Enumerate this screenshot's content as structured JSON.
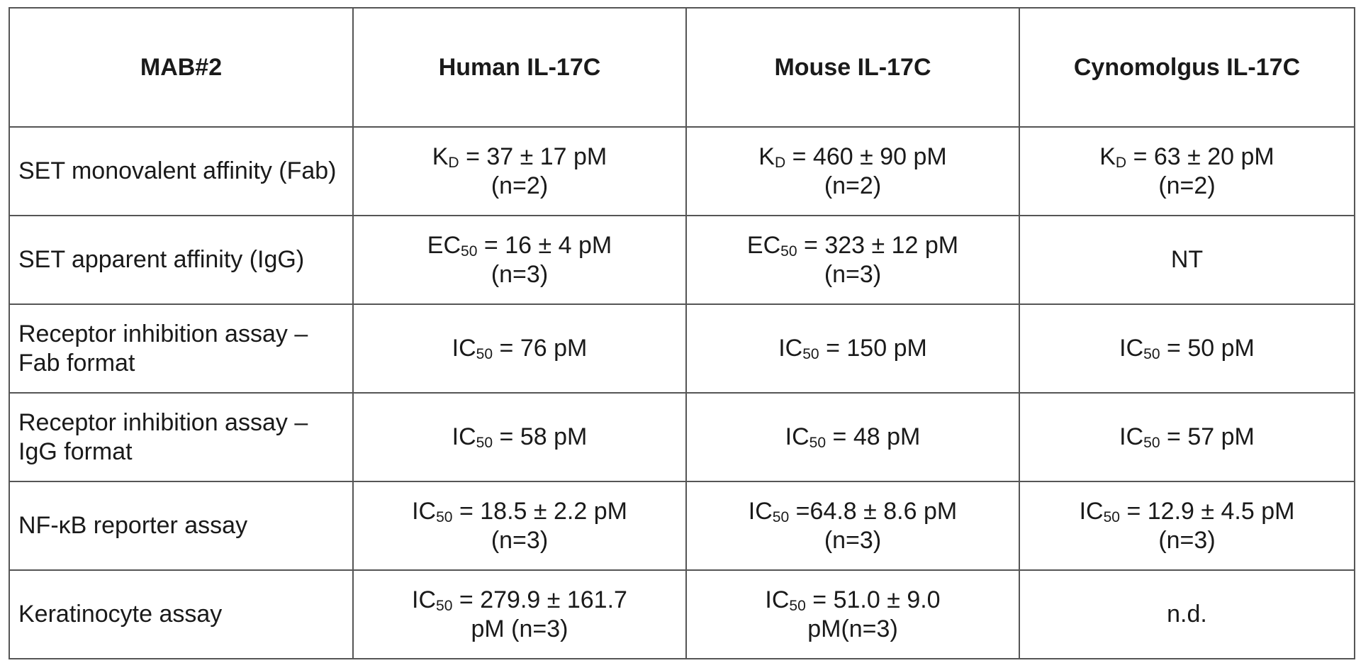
{
  "header": {
    "col0": "MAB#2",
    "col1": "Human IL-17C",
    "col2": "Mouse IL-17C",
    "col3": "Cynomolgus IL-17C"
  },
  "rows": [
    {
      "label": "SET monovalent affinity (Fab)",
      "cells": [
        {
          "prefix": "K",
          "sub": "D",
          "main": " = 37 ± 17 pM",
          "note": "(n=2)"
        },
        {
          "prefix": "K",
          "sub": "D",
          "main": " = 460 ± 90 pM",
          "note": "(n=2)"
        },
        {
          "prefix": "K",
          "sub": "D",
          "main": " = 63 ± 20 pM",
          "note": "(n=2)"
        }
      ]
    },
    {
      "label": "SET apparent affinity (IgG)",
      "cells": [
        {
          "prefix": "EC",
          "sub": "50",
          "main": " = 16 ± 4 pM",
          "note": "(n=3)"
        },
        {
          "prefix": "EC",
          "sub": "50",
          "main": " = 323 ± 12 pM",
          "note": "(n=3)"
        },
        {
          "prefix": "",
          "sub": "",
          "main": "NT",
          "note": ""
        }
      ]
    },
    {
      "label": "Receptor inhibition assay – Fab format",
      "cells": [
        {
          "prefix": "IC",
          "sub": "50",
          "main": " = 76 pM",
          "note": ""
        },
        {
          "prefix": "IC",
          "sub": "50",
          "main": " = 150 pM",
          "note": ""
        },
        {
          "prefix": "IC",
          "sub": "50",
          "main": " = 50 pM",
          "note": ""
        }
      ]
    },
    {
      "label": "Receptor inhibition assay – IgG format",
      "cells": [
        {
          "prefix": "IC",
          "sub": "50",
          "main": " = 58 pM",
          "note": ""
        },
        {
          "prefix": "IC",
          "sub": "50",
          "main": " = 48 pM",
          "note": ""
        },
        {
          "prefix": "IC",
          "sub": "50",
          "main": " = 57 pM",
          "note": ""
        }
      ]
    },
    {
      "label": "NF-κB reporter assay",
      "cells": [
        {
          "prefix": "IC",
          "sub": "50",
          "main": " = 18.5 ± 2.2 pM",
          "note": "(n=3)"
        },
        {
          "prefix": "IC",
          "sub": "50",
          "main": " =64.8 ± 8.6 pM",
          "note": "(n=3)"
        },
        {
          "prefix": "IC",
          "sub": "50",
          "main": " = 12.9 ± 4.5 pM",
          "note": "(n=3)"
        }
      ]
    },
    {
      "label": "Keratinocyte assay",
      "cells": [
        {
          "prefix": "IC",
          "sub": "50",
          "main": " = 279.9 ± 161.7",
          "note": "pM (n=3)"
        },
        {
          "prefix": "IC",
          "sub": "50",
          "main": " = 51.0 ± 9.0",
          "note": "pM(n=3)"
        },
        {
          "prefix": "",
          "sub": "",
          "main": "n.d.",
          "note": ""
        }
      ]
    }
  ]
}
